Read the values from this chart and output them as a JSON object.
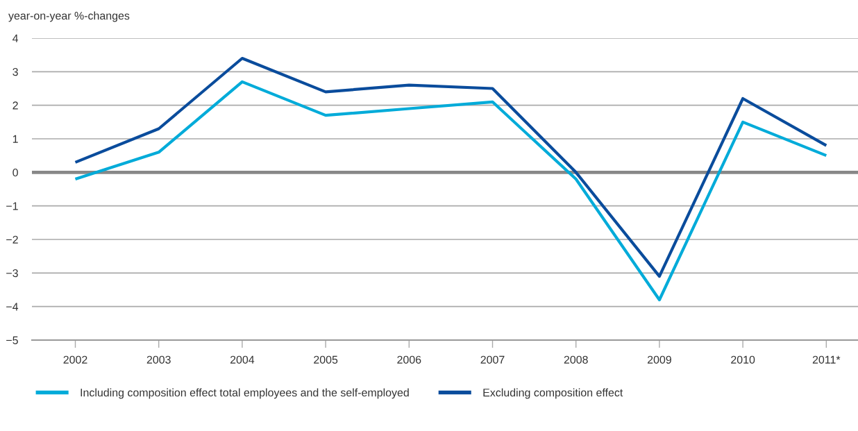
{
  "chart_data": {
    "type": "line",
    "ylabel": "year-on-year %-changes",
    "categories": [
      "2002",
      "2003",
      "2004",
      "2005",
      "2006",
      "2007",
      "2008",
      "2009",
      "2010",
      "2011*"
    ],
    "series": [
      {
        "name": "Including composition effect total employees and the self-employed",
        "color": "#00abd9",
        "values": [
          -0.2,
          0.6,
          2.7,
          1.7,
          1.9,
          2.1,
          -0.2,
          -3.8,
          1.5,
          0.5
        ]
      },
      {
        "name": "Excluding composition effect",
        "color": "#0a4c9c",
        "values": [
          0.3,
          1.3,
          3.4,
          2.4,
          2.6,
          2.5,
          0.0,
          -3.1,
          2.2,
          0.8
        ]
      }
    ],
    "ylim": [
      -5,
      4
    ],
    "yticks": [
      {
        "value": -5,
        "label": "−5"
      },
      {
        "value": -4,
        "label": "−4"
      },
      {
        "value": -3,
        "label": "−3"
      },
      {
        "value": -2,
        "label": "−2"
      },
      {
        "value": -1,
        "label": "−1"
      },
      0,
      1,
      2,
      3,
      4
    ],
    "ref_lines": [
      {
        "axis": "y",
        "value": 0,
        "color": "#888888"
      }
    ],
    "grid": "y",
    "legend": "bottom",
    "marker": "none",
    "line_style": "solid"
  }
}
